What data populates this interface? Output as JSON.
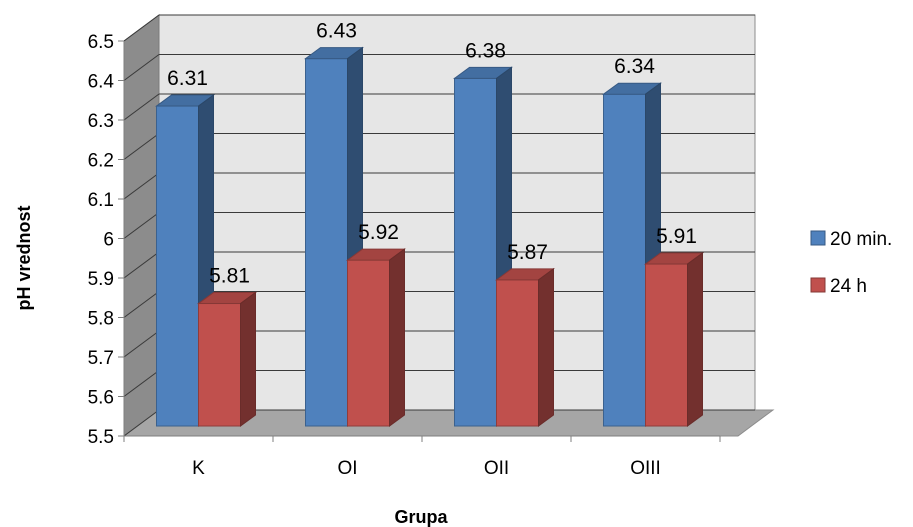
{
  "chart_data": {
    "type": "bar",
    "categories": [
      "K",
      "OI",
      "OII",
      "OIII"
    ],
    "series": [
      {
        "name": "20 min.",
        "values": [
          6.31,
          6.43,
          6.38,
          6.34
        ],
        "color": "#4F81BD"
      },
      {
        "name": "24 h",
        "values": [
          5.81,
          5.92,
          5.87,
          5.91
        ],
        "color": "#C0504D"
      }
    ],
    "xlabel": "Grupa",
    "ylabel": "pH vrednost",
    "ylim": [
      5.5,
      6.5
    ],
    "yticks": [
      "6.5",
      "6.4",
      "6.3",
      "6.2",
      "6.1",
      "6",
      "5.9",
      "5.8",
      "5.7",
      "5.6",
      "5.5"
    ],
    "grid": true,
    "legend_position": "right",
    "style": "3d-clustered-column"
  }
}
